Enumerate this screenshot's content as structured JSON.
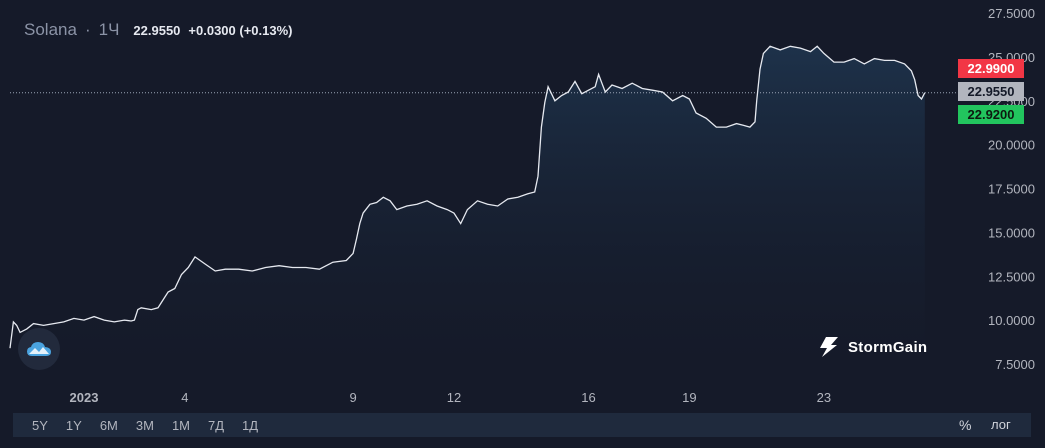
{
  "legend": {
    "symbol": "Solana",
    "separator": "·",
    "interval": "1Ч",
    "last": "22.9550",
    "change": "+0.0300 (+0.13%)"
  },
  "price_tags": {
    "high": "22.9900",
    "last": "22.9550",
    "low": "22.9200"
  },
  "brand": {
    "name": "StormGain"
  },
  "icons": {
    "logo": "cloud-logo-icon",
    "brand": "stormgain-lightning-icon"
  },
  "ranges": [
    "5Y",
    "1Y",
    "6M",
    "3M",
    "1M",
    "7Д",
    "1Д"
  ],
  "options": {
    "percent": "%",
    "log": "лог"
  },
  "colors": {
    "background": "#151a29",
    "line": "#e6e9f0",
    "area_top": "#1f3650",
    "high_tag": "#f23645",
    "last_tag": "#b2b5be",
    "low_tag": "#22c55e",
    "bottom_bar": "#1f2a3d"
  },
  "chart_data": {
    "type": "area",
    "title": "Solana",
    "xlabel": "",
    "ylabel": "",
    "x_ticks": [
      {
        "label": "2023",
        "x": 0
      },
      {
        "label": "4",
        "x": 3
      },
      {
        "label": "9",
        "x": 8
      },
      {
        "label": "12",
        "x": 11
      },
      {
        "label": "16",
        "x": 15
      },
      {
        "label": "19",
        "x": 18
      },
      {
        "label": "23",
        "x": 22
      }
    ],
    "y_ticks": [
      "7.5000",
      "10.0000",
      "12.5000",
      "15.0000",
      "17.5000",
      "20.0000",
      "22.5000",
      "25.0000",
      "27.5000"
    ],
    "ylim": [
      7.5,
      27.5
    ],
    "xlim": [
      -2.2,
      25.6
    ],
    "grid": false,
    "series": [
      {
        "x": [
          -2.2,
          -2.1,
          -2.0,
          -1.9,
          -1.7,
          -1.5,
          -1.2,
          -0.9,
          -0.6,
          -0.3,
          0.0,
          0.3,
          0.6,
          0.9,
          1.2,
          1.4,
          1.5,
          1.6,
          1.7,
          2.0,
          2.2,
          2.3,
          2.5,
          2.7,
          2.9,
          3.1,
          3.3,
          3.6,
          3.9,
          4.2,
          4.6,
          5.0,
          5.4,
          5.8,
          6.2,
          6.6,
          7.0,
          7.4,
          7.8,
          8.0,
          8.1,
          8.2,
          8.3,
          8.5,
          8.7,
          8.9,
          9.1,
          9.3,
          9.6,
          9.9,
          10.2,
          10.5,
          10.8,
          11.0,
          11.2,
          11.4,
          11.7,
          12.0,
          12.3,
          12.6,
          12.9,
          13.2,
          13.4,
          13.5,
          13.6,
          13.7,
          13.8,
          13.9,
          14.0,
          14.2,
          14.4,
          14.6,
          14.8,
          15.0,
          15.2,
          15.3,
          15.4,
          15.5,
          15.7,
          16.0,
          16.3,
          16.6,
          16.9,
          17.2,
          17.5,
          17.8,
          18.0,
          18.2,
          18.5,
          18.8,
          19.1,
          19.4,
          19.6,
          19.8,
          19.95,
          20.0,
          20.1,
          20.2,
          20.4,
          20.7,
          21.0,
          21.3,
          21.6,
          21.8,
          22.0,
          22.3,
          22.6,
          22.9,
          23.2,
          23.5,
          23.8,
          24.1,
          24.4,
          24.6,
          24.7,
          24.8,
          24.9,
          25.0
        ],
        "y": [
          8.4,
          9.9,
          9.7,
          9.3,
          9.5,
          9.8,
          9.7,
          9.8,
          9.9,
          10.1,
          10.0,
          10.2,
          10.0,
          9.9,
          10.0,
          9.95,
          10.0,
          10.6,
          10.7,
          10.6,
          10.7,
          11.0,
          11.6,
          11.8,
          12.6,
          13.0,
          13.6,
          13.2,
          12.8,
          12.9,
          12.9,
          12.8,
          13.0,
          13.1,
          13.0,
          13.0,
          12.9,
          13.3,
          13.4,
          13.8,
          14.6,
          15.5,
          16.1,
          16.6,
          16.7,
          17.0,
          16.8,
          16.3,
          16.5,
          16.6,
          16.8,
          16.5,
          16.3,
          16.1,
          15.5,
          16.3,
          16.8,
          16.6,
          16.5,
          16.9,
          17.0,
          17.2,
          17.3,
          18.2,
          21.0,
          22.4,
          23.3,
          22.9,
          22.5,
          22.8,
          23.0,
          23.6,
          22.9,
          23.1,
          23.3,
          24.0,
          23.5,
          23.0,
          23.4,
          23.2,
          23.5,
          23.2,
          23.1,
          23.0,
          22.5,
          22.8,
          22.6,
          21.8,
          21.5,
          21.0,
          21.0,
          21.2,
          21.1,
          21.0,
          21.3,
          22.5,
          24.3,
          25.2,
          25.6,
          25.4,
          25.6,
          25.5,
          25.3,
          25.6,
          25.2,
          24.7,
          24.7,
          24.9,
          24.6,
          24.9,
          24.8,
          24.8,
          24.6,
          24.2,
          23.7,
          22.8,
          22.6,
          22.96
        ]
      }
    ]
  }
}
